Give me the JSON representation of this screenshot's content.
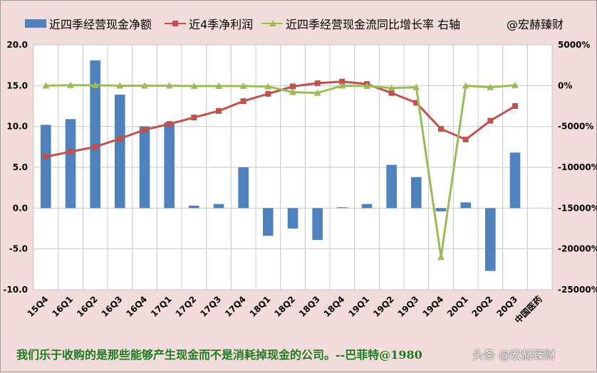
{
  "legend": {
    "series1": "近四季经营现金净额",
    "series2": "近4季净利润",
    "series3": "近四季经营现金流同比增长率 右轴",
    "brand": "@宏赫臻财"
  },
  "quote": "我们乐于收购的是那些能够产生现金而不是消耗掉现金的公司。--巴菲特@1980",
  "footer_brand": "头条 @宏赫臻财",
  "colors": {
    "bar": "#4f81bd",
    "profit": "#c0504d",
    "growth": "#9bbb59",
    "background": "#f2dcdb",
    "plot": "#ffffff",
    "quote": "#1e7a1e"
  },
  "chart_data": {
    "type": "bar+line",
    "categories": [
      "15Q4",
      "16Q1",
      "16Q2",
      "16Q3",
      "16Q4",
      "17Q1",
      "17Q2",
      "17Q3",
      "17Q4",
      "18Q1",
      "18Q2",
      "18Q3",
      "18Q4",
      "19Q1",
      "19Q2",
      "19Q3",
      "19Q4",
      "20Q1",
      "20Q2",
      "20Q3",
      "中国医药"
    ],
    "ylim": [
      -10,
      20
    ],
    "yticks": [
      "20.0",
      "15.0",
      "10.0",
      "5.0",
      "0.0",
      "-5.0",
      "-10.0"
    ],
    "y2lim": [
      -25000,
      5000
    ],
    "y2ticks": [
      "5000%",
      "0%",
      "-5000%",
      "-10000%",
      "-15000%",
      "-20000%",
      "-25000%"
    ],
    "grid": true,
    "legend_position": "top",
    "series": [
      {
        "name": "近四季经营现金净额",
        "type": "bar",
        "axis": "left",
        "values": [
          10.2,
          10.9,
          18.1,
          13.9,
          10.0,
          10.5,
          0.3,
          0.5,
          5.0,
          -3.4,
          -2.5,
          -3.9,
          0.1,
          0.5,
          5.3,
          3.8,
          -0.4,
          0.7,
          -7.7,
          6.8,
          null
        ]
      },
      {
        "name": "近4季净利润",
        "type": "line",
        "axis": "left",
        "values": [
          6.3,
          6.9,
          7.5,
          8.5,
          9.6,
          10.3,
          11.1,
          11.9,
          13.1,
          14.0,
          14.9,
          15.3,
          15.5,
          15.2,
          14.1,
          12.9,
          9.7,
          8.4,
          10.7,
          12.5,
          null
        ]
      },
      {
        "name": "近四季经营现金流同比增长率 右轴",
        "type": "line",
        "axis": "right",
        "values": [
          0,
          50,
          50,
          0,
          0,
          0,
          -50,
          -50,
          -50,
          -100,
          -800,
          -900,
          0,
          -50,
          -300,
          -200,
          -21000,
          0,
          -200,
          50,
          null
        ]
      }
    ]
  }
}
